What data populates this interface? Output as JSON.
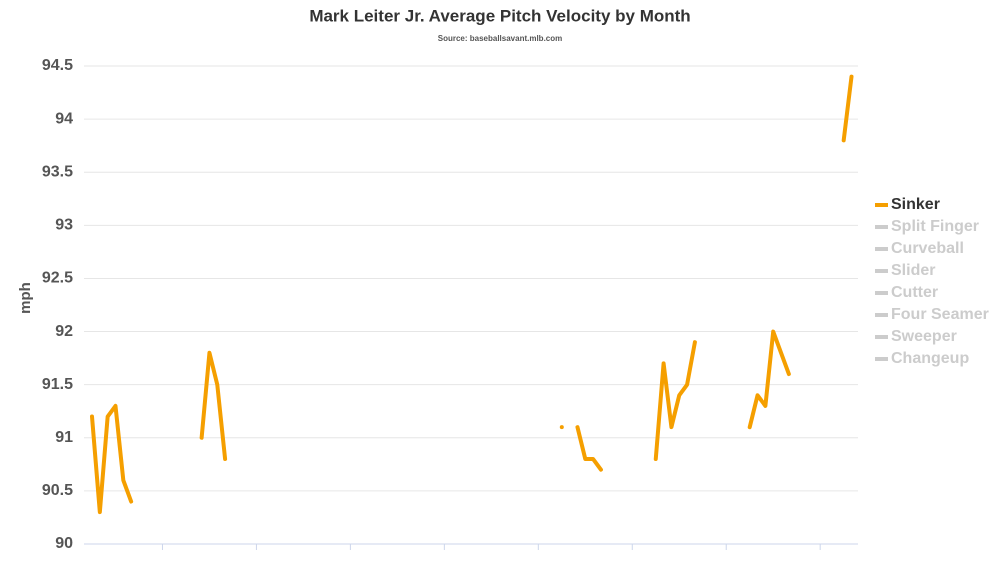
{
  "chart_data": {
    "type": "line",
    "title": "Mark Leiter Jr. Average Pitch Velocity by Month",
    "subtitle": "Source: baseballsavant.mlb.com",
    "y_label": "mph",
    "categories": [
      null,
      null,
      null,
      null,
      null,
      null,
      null,
      null,
      null,
      null,
      null,
      null,
      null,
      null,
      null,
      null,
      null,
      null,
      null,
      null,
      null,
      null,
      null,
      null,
      null,
      null,
      null,
      null,
      null,
      null,
      null,
      null,
      null,
      null,
      null,
      null,
      null,
      null,
      null,
      null,
      null,
      null,
      null,
      null,
      null,
      null,
      null,
      null,
      null,
      null,
      null,
      null,
      null,
      null,
      null,
      null,
      null,
      null,
      null,
      null,
      null,
      null,
      null,
      null,
      null,
      null,
      null,
      null,
      null,
      null,
      null,
      null,
      null,
      null,
      null,
      null,
      null,
      null,
      null,
      null,
      null,
      null,
      null,
      null,
      null,
      null,
      null,
      null,
      null,
      null,
      null,
      null,
      null,
      null,
      null,
      null,
      null,
      null,
      null
    ],
    "series": [
      {
        "name": "Sinker",
        "color": "#f59f00",
        "values": [
          91.2,
          90.3,
          91.2,
          91.3,
          90.6,
          90.4,
          null,
          null,
          null,
          null,
          null,
          null,
          null,
          null,
          91.0,
          91.8,
          91.5,
          90.8,
          null,
          null,
          null,
          null,
          null,
          null,
          null,
          null,
          null,
          null,
          null,
          null,
          null,
          null,
          null,
          null,
          null,
          null,
          null,
          null,
          null,
          null,
          null,
          null,
          null,
          null,
          null,
          null,
          null,
          null,
          null,
          null,
          null,
          null,
          null,
          null,
          null,
          null,
          null,
          null,
          null,
          null,
          91.1,
          null,
          91.1,
          90.8,
          90.8,
          90.7,
          null,
          null,
          null,
          null,
          null,
          null,
          90.8,
          91.7,
          91.1,
          91.4,
          91.5,
          91.9,
          null,
          null,
          null,
          null,
          null,
          null,
          91.1,
          91.4,
          91.3,
          92.0,
          91.8,
          91.6,
          null,
          null,
          null,
          null,
          null,
          null,
          93.8,
          94.4,
          null
        ]
      }
    ],
    "hidden_series": [
      "Split Finger",
      "Curveball",
      "Slider",
      "Cutter",
      "Four Seamer",
      "Sweeper",
      "Changeup"
    ],
    "hidden_color": "#cccccc",
    "ylim": [
      90,
      94.5
    ],
    "yticks": [
      90,
      90.5,
      91,
      91.5,
      92,
      92.5,
      93,
      93.5,
      94,
      94.5
    ],
    "grid": true
  }
}
